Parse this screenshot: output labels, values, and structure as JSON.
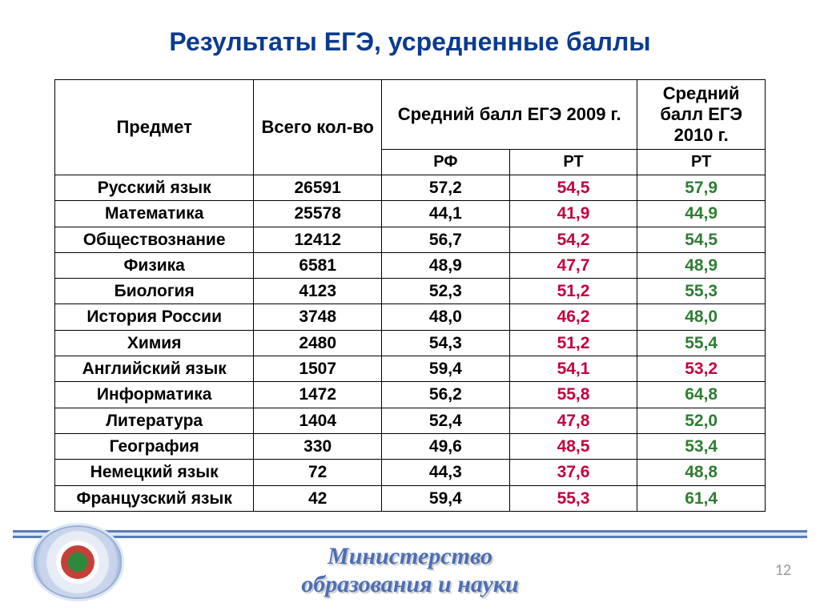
{
  "title": {
    "text": "Результаты ЕГЭ, усредненные баллы",
    "color": "#0a3b8f",
    "fontsize": 32
  },
  "table": {
    "header_fontsize": 22,
    "sub_header_fontsize": 20,
    "row_fontsize": 21,
    "text_color": "#000000",
    "rt_color": "#c3003d",
    "rt2010_color": "#2e7d32",
    "rt2010_alt_color": "#c3003d",
    "border_color": "#000000",
    "columns": {
      "subject": "Предмет",
      "count": "Всего кол-во",
      "avg2009": "Средний балл ЕГЭ 2009 г.",
      "avg2010": "Средний балл ЕГЭ 2010 г.",
      "rf": "РФ",
      "rt": "РТ",
      "rt2": "РТ"
    },
    "rows": [
      {
        "subject": "Русский язык",
        "count": "26591",
        "rf": "57,2",
        "rt": "54,5",
        "rt2010": "57,9",
        "rt2010_neg": false
      },
      {
        "subject": "Математика",
        "count": "25578",
        "rf": "44,1",
        "rt": "41,9",
        "rt2010": "44,9",
        "rt2010_neg": false
      },
      {
        "subject": "Обществознание",
        "count": "12412",
        "rf": "56,7",
        "rt": "54,2",
        "rt2010": "54,5",
        "rt2010_neg": false
      },
      {
        "subject": "Физика",
        "count": "6581",
        "rf": "48,9",
        "rt": "47,7",
        "rt2010": "48,9",
        "rt2010_neg": false
      },
      {
        "subject": "Биология",
        "count": "4123",
        "rf": "52,3",
        "rt": "51,2",
        "rt2010": "55,3",
        "rt2010_neg": false
      },
      {
        "subject": "История России",
        "count": "3748",
        "rf": "48,0",
        "rt": "46,2",
        "rt2010": "48,0",
        "rt2010_neg": false
      },
      {
        "subject": "Химия",
        "count": "2480",
        "rf": "54,3",
        "rt": "51,2",
        "rt2010": "55,4",
        "rt2010_neg": false
      },
      {
        "subject": "Английский язык",
        "count": "1507",
        "rf": "59,4",
        "rt": "54,1",
        "rt2010": "53,2",
        "rt2010_neg": true
      },
      {
        "subject": "Информатика",
        "count": "1472",
        "rf": "56,2",
        "rt": "55,8",
        "rt2010": "64,8",
        "rt2010_neg": false
      },
      {
        "subject": "Литература",
        "count": "1404",
        "rf": "52,4",
        "rt": "47,8",
        "rt2010": "52,0",
        "rt2010_neg": false
      },
      {
        "subject": "География",
        "count": "330",
        "rf": "49,6",
        "rt": "48,5",
        "rt2010": "53,4",
        "rt2010_neg": false
      },
      {
        "subject": "Немецкий язык",
        "count": "72",
        "rf": "44,3",
        "rt": "37,6",
        "rt2010": "48,8",
        "rt2010_neg": false
      },
      {
        "subject": "Французский язык",
        "count": "42",
        "rf": "59,4",
        "rt": "55,3",
        "rt2010": "61,4",
        "rt2010_neg": false
      }
    ]
  },
  "footer": {
    "line1": "Министерство",
    "line2": "образования и науки",
    "color": "#4b6fb5",
    "fontsize": 30,
    "page_number": "12",
    "page_number_color": "#9a9a9a",
    "page_number_fontsize": 20
  }
}
